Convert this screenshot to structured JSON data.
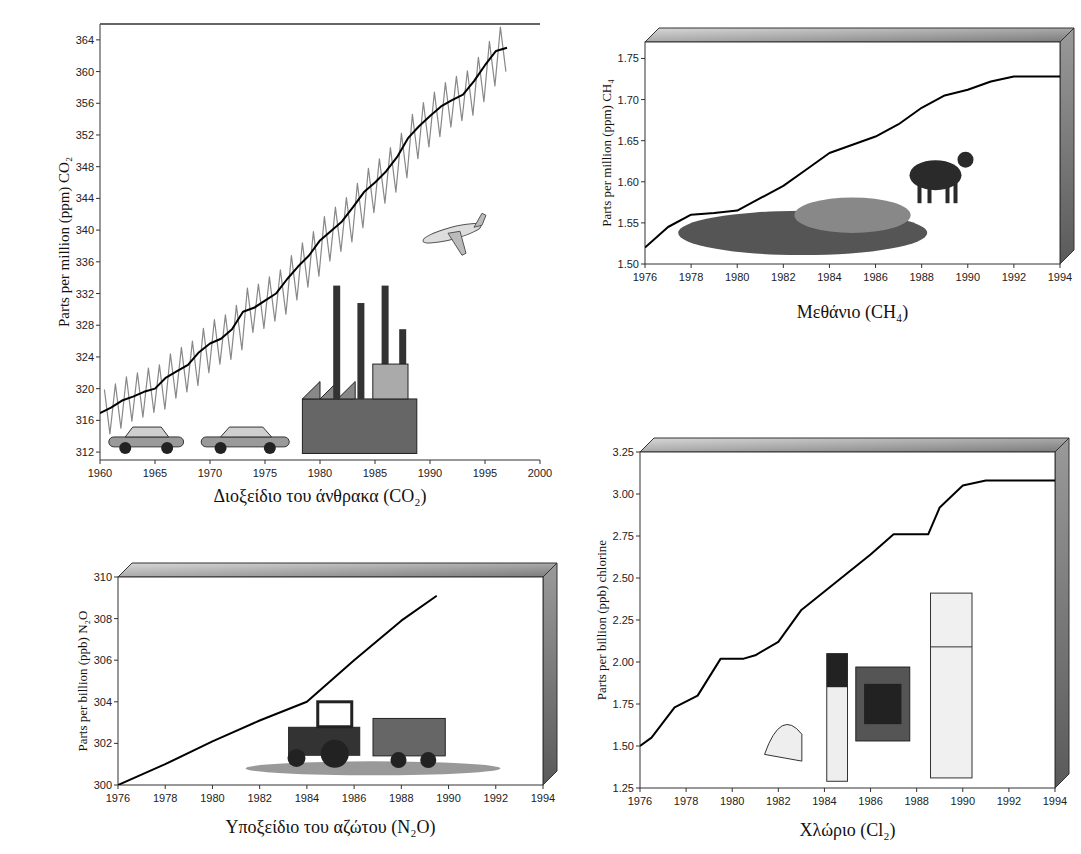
{
  "chart_data": [
    {
      "type": "line",
      "title": "Διοξείδιο του άνθρακα (CO₂)",
      "y_label": "Parts per million (ppm) CO₂",
      "xlim": [
        1960,
        2000
      ],
      "xticks": [
        1960,
        1965,
        1970,
        1975,
        1980,
        1985,
        1990,
        1995,
        2000
      ],
      "ylim": [
        311,
        366
      ],
      "yticks": [
        312,
        316,
        320,
        324,
        328,
        332,
        336,
        340,
        344,
        348,
        352,
        356,
        360,
        364
      ],
      "grid": false,
      "series": [
        {
          "color": "#888888",
          "line_style": "solid",
          "x": [
            1960.4,
            1960.9,
            1961.4,
            1961.9,
            1962.4,
            1962.9,
            1963.4,
            1963.9,
            1964.4,
            1964.9,
            1965.4,
            1965.9,
            1966.4,
            1966.9,
            1967.4,
            1967.9,
            1968.4,
            1968.9,
            1969.4,
            1969.9,
            1970.4,
            1970.9,
            1971.4,
            1971.9,
            1972.4,
            1972.9,
            1973.4,
            1973.9,
            1974.4,
            1974.9,
            1975.4,
            1975.9,
            1976.4,
            1976.9,
            1977.4,
            1977.9,
            1978.4,
            1978.9,
            1979.4,
            1979.9,
            1980.4,
            1980.9,
            1981.4,
            1981.9,
            1982.4,
            1982.9,
            1983.4,
            1983.9,
            1984.4,
            1984.9,
            1985.4,
            1985.9,
            1986.4,
            1986.9,
            1987.4,
            1987.9,
            1988.4,
            1988.9,
            1989.4,
            1989.9,
            1990.4,
            1990.9,
            1991.4,
            1991.9,
            1992.4,
            1992.9,
            1993.4,
            1993.9,
            1994.4,
            1994.9,
            1995.4,
            1995.9,
            1996.4,
            1996.9
          ],
          "values": [
            319.9,
            314.3,
            320.6,
            315.0,
            321.5,
            315.9,
            322.0,
            316.4,
            322.6,
            317.0,
            323.0,
            317.4,
            324.4,
            318.8,
            325.2,
            319.6,
            326.0,
            320.4,
            327.6,
            322.0,
            328.7,
            323.1,
            329.3,
            323.7,
            330.5,
            324.9,
            332.7,
            327.1,
            333.2,
            327.6,
            334.1,
            328.5,
            335.0,
            329.4,
            336.8,
            331.2,
            338.4,
            332.8,
            339.8,
            334.2,
            341.7,
            336.1,
            342.9,
            337.3,
            344.1,
            338.5,
            345.9,
            340.3,
            347.8,
            342.2,
            349.0,
            343.4,
            350.4,
            344.8,
            352.2,
            346.6,
            354.6,
            349.0,
            356.1,
            350.5,
            357.4,
            351.8,
            358.6,
            353.0,
            359.4,
            353.8,
            360.1,
            354.5,
            361.8,
            356.2,
            363.8,
            358.2,
            365.6,
            360.0
          ]
        },
        {
          "color": "#000000",
          "line_style": "solid",
          "x": [
            1960,
            1961,
            1962,
            1963,
            1964,
            1965,
            1966,
            1967,
            1968,
            1969,
            1970,
            1971,
            1972,
            1973,
            1974,
            1975,
            1976,
            1977,
            1978,
            1979,
            1980,
            1981,
            1982,
            1983,
            1984,
            1985,
            1986,
            1987,
            1988,
            1989,
            1990,
            1991,
            1992,
            1993,
            1994,
            1995,
            1996,
            1997
          ],
          "values": [
            316.9,
            317.6,
            318.5,
            319.0,
            319.6,
            320.0,
            321.4,
            322.2,
            323.0,
            324.6,
            325.7,
            326.3,
            327.5,
            329.7,
            330.2,
            331.1,
            332.0,
            333.8,
            335.4,
            336.8,
            338.7,
            339.9,
            341.1,
            342.9,
            344.8,
            346.0,
            347.4,
            349.2,
            351.6,
            353.1,
            354.4,
            355.6,
            356.4,
            357.1,
            358.8,
            360.8,
            362.6,
            363.0
          ]
        }
      ]
    },
    {
      "type": "line",
      "title": "Μεθάνιο (CH₄)",
      "y_label": "Parts per million (ppm) CH₄",
      "xlim": [
        1976,
        1994
      ],
      "xticks": [
        1976,
        1978,
        1980,
        1982,
        1984,
        1986,
        1988,
        1990,
        1992,
        1994
      ],
      "ylim": [
        1.5,
        1.77
      ],
      "yticks": [
        {
          "value": 1.5,
          "label": "1.50"
        },
        1.55,
        {
          "value": 1.6,
          "label": "1.60"
        },
        1.65,
        {
          "value": 1.7,
          "label": "1.70"
        },
        1.75
      ],
      "grid": false,
      "x": [
        1976,
        1977,
        1978,
        1979,
        1980,
        1981,
        1982,
        1983,
        1984,
        1985,
        1986,
        1987,
        1988,
        1989,
        1990,
        1991,
        1992,
        1993,
        1994
      ],
      "series": [
        {
          "color": "#000000",
          "line_style": "solid",
          "values": [
            1.52,
            1.545,
            1.56,
            1.562,
            1.565,
            1.58,
            1.595,
            1.615,
            1.635,
            1.645,
            1.655,
            1.67,
            1.69,
            1.705,
            1.712,
            1.722,
            1.728,
            1.728,
            1.728
          ]
        }
      ]
    },
    {
      "type": "line",
      "title": "Υποξείδιο του αζώτου (N₂O)",
      "y_label": "Parts per billion (ppb) N₂O",
      "xlim": [
        1976,
        1994
      ],
      "xticks": [
        1976,
        1978,
        1980,
        1982,
        1984,
        1986,
        1988,
        1990,
        1992,
        1994
      ],
      "ylim": [
        300,
        310
      ],
      "yticks": [
        300,
        302,
        304,
        306,
        308,
        310
      ],
      "grid": false,
      "x": [
        1976,
        1978,
        1980,
        1982,
        1984,
        1986,
        1988,
        1989.5
      ],
      "series": [
        {
          "color": "#000000",
          "line_style": "solid",
          "values": [
            300.0,
            301.0,
            302.1,
            303.1,
            304.0,
            306.0,
            307.9,
            309.1
          ]
        }
      ]
    },
    {
      "type": "line",
      "title": "Χλώριο (Cl₂)",
      "y_label": "Parts per billion (ppb) chlorine",
      "xlim": [
        1976,
        1994
      ],
      "xticks": [
        1976,
        1978,
        1980,
        1982,
        1984,
        1986,
        1988,
        1990,
        1992,
        1994
      ],
      "ylim": [
        1.25,
        3.25
      ],
      "yticks": [
        1.25,
        {
          "value": 1.5,
          "label": "1.50"
        },
        1.75,
        {
          "value": 2,
          "label": "2.00"
        },
        2.25,
        {
          "value": 2.5,
          "label": "2.50"
        },
        2.75,
        {
          "value": 3,
          "label": "3.00"
        },
        3.25
      ],
      "grid": false,
      "x": [
        1976,
        1976.5,
        1977.5,
        1978.5,
        1979.5,
        1980.5,
        1981,
        1982,
        1983,
        1984,
        1985,
        1986,
        1987,
        1988.5,
        1989,
        1990,
        1991,
        1994
      ],
      "series": [
        {
          "color": "#000000",
          "line_style": "solid",
          "values": [
            1.5,
            1.55,
            1.73,
            1.8,
            2.02,
            2.02,
            2.04,
            2.12,
            2.31,
            2.42,
            2.53,
            2.64,
            2.76,
            2.76,
            2.92,
            3.05,
            3.08,
            3.08
          ]
        }
      ]
    }
  ]
}
